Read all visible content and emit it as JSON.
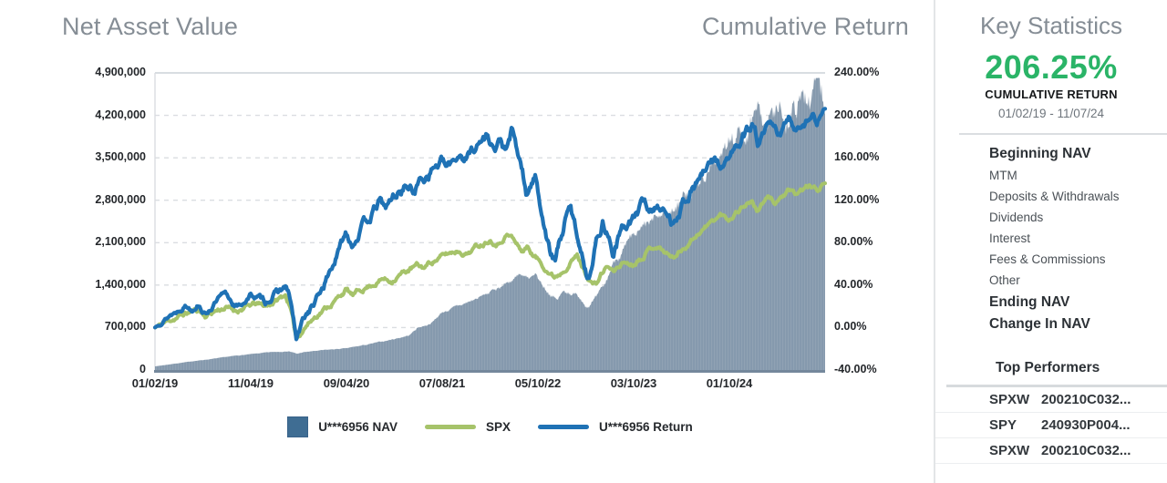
{
  "header": {
    "nav_title": "Net Asset Value",
    "return_title": "Cumulative Return"
  },
  "chart_data": {
    "type": "mixed-area-line",
    "grid": true,
    "legend_position": "bottom",
    "x_ticks": [
      "01/02/19",
      "11/04/19",
      "09/04/20",
      "07/08/21",
      "05/10/22",
      "03/10/23",
      "01/10/24"
    ],
    "x_end_date": "11/07/24",
    "left_axis": {
      "min": 0,
      "max": 4900000,
      "labels": [
        "4,900,000",
        "4,200,000",
        "3,500,000",
        "2,800,000",
        "2,100,000",
        "1,400,000",
        "700,000",
        "0"
      ]
    },
    "right_axis": {
      "min": -40,
      "max": 240,
      "labels": [
        "240.00%",
        "200.00%",
        "160.00%",
        "120.00%",
        "80.00%",
        "40.00%",
        "0.00%",
        "-40.00%"
      ]
    },
    "series": [
      {
        "name": "U***6956 NAV",
        "kind": "area",
        "axis": "left",
        "color": "#8599ad",
        "legend_swatch": "#3f6d93",
        "points": [
          [
            0.0,
            60000
          ],
          [
            0.02,
            90000
          ],
          [
            0.04,
            120000
          ],
          [
            0.06,
            150000
          ],
          [
            0.08,
            175000
          ],
          [
            0.1,
            205000
          ],
          [
            0.12,
            235000
          ],
          [
            0.143,
            260000
          ],
          [
            0.16,
            280000
          ],
          [
            0.18,
            300000
          ],
          [
            0.2,
            310000
          ],
          [
            0.207,
            285000
          ],
          [
            0.212,
            265000
          ],
          [
            0.22,
            290000
          ],
          [
            0.24,
            315000
          ],
          [
            0.26,
            335000
          ],
          [
            0.285,
            355000
          ],
          [
            0.3,
            385000
          ],
          [
            0.32,
            425000
          ],
          [
            0.34,
            470000
          ],
          [
            0.36,
            520000
          ],
          [
            0.38,
            575000
          ],
          [
            0.392,
            700000
          ],
          [
            0.405,
            740000
          ],
          [
            0.415,
            800000
          ],
          [
            0.428,
            950000
          ],
          [
            0.44,
            1000000
          ],
          [
            0.455,
            1060000
          ],
          [
            0.47,
            1130000
          ],
          [
            0.485,
            1200000
          ],
          [
            0.5,
            1280000
          ],
          [
            0.515,
            1380000
          ],
          [
            0.53,
            1470000
          ],
          [
            0.544,
            1550000
          ],
          [
            0.556,
            1470000
          ],
          [
            0.568,
            1580000
          ],
          [
            0.58,
            1380000
          ],
          [
            0.59,
            1250000
          ],
          [
            0.6,
            1150000
          ],
          [
            0.61,
            1300000
          ],
          [
            0.62,
            1280000
          ],
          [
            0.632,
            1220000
          ],
          [
            0.645,
            1060000
          ],
          [
            0.66,
            1200000
          ],
          [
            0.672,
            1400000
          ],
          [
            0.685,
            1800000
          ],
          [
            0.7,
            2000000
          ],
          [
            0.714,
            2150000
          ],
          [
            0.73,
            2330000
          ],
          [
            0.75,
            2500000
          ],
          [
            0.77,
            2600000
          ],
          [
            0.79,
            2900000
          ],
          [
            0.81,
            3100000
          ],
          [
            0.83,
            3320000
          ],
          [
            0.857,
            3700000
          ],
          [
            0.88,
            3920000
          ],
          [
            0.9,
            4120000
          ],
          [
            0.92,
            4260000
          ],
          [
            0.94,
            4120000
          ],
          [
            0.96,
            4380000
          ],
          [
            0.975,
            4560000
          ],
          [
            0.99,
            4660000
          ],
          [
            1.0,
            4460000
          ]
        ]
      },
      {
        "name": "SPX",
        "kind": "line",
        "axis": "right",
        "color": "#a6c36a",
        "legend_swatch": "#a6c36a",
        "points": [
          [
            0.0,
            0
          ],
          [
            0.015,
            5
          ],
          [
            0.03,
            9
          ],
          [
            0.045,
            13
          ],
          [
            0.055,
            15
          ],
          [
            0.065,
            17
          ],
          [
            0.075,
            11
          ],
          [
            0.09,
            16
          ],
          [
            0.105,
            19
          ],
          [
            0.12,
            16
          ],
          [
            0.135,
            19
          ],
          [
            0.15,
            22
          ],
          [
            0.165,
            20
          ],
          [
            0.18,
            25
          ],
          [
            0.195,
            31
          ],
          [
            0.202,
            18
          ],
          [
            0.207,
            2
          ],
          [
            0.211,
            -11
          ],
          [
            0.217,
            -5
          ],
          [
            0.225,
            2
          ],
          [
            0.235,
            8
          ],
          [
            0.245,
            14
          ],
          [
            0.258,
            20
          ],
          [
            0.27,
            26
          ],
          [
            0.285,
            36
          ],
          [
            0.295,
            30
          ],
          [
            0.305,
            34
          ],
          [
            0.315,
            38
          ],
          [
            0.328,
            42
          ],
          [
            0.34,
            46
          ],
          [
            0.352,
            44
          ],
          [
            0.365,
            50
          ],
          [
            0.378,
            54
          ],
          [
            0.39,
            58
          ],
          [
            0.4,
            56
          ],
          [
            0.412,
            62
          ],
          [
            0.428,
            67
          ],
          [
            0.44,
            70
          ],
          [
            0.452,
            73
          ],
          [
            0.465,
            70
          ],
          [
            0.478,
            76
          ],
          [
            0.49,
            80
          ],
          [
            0.5,
            84
          ],
          [
            0.512,
            80
          ],
          [
            0.524,
            88
          ],
          [
            0.532,
            86
          ],
          [
            0.54,
            78
          ],
          [
            0.548,
            72
          ],
          [
            0.556,
            76
          ],
          [
            0.565,
            68
          ],
          [
            0.575,
            62
          ],
          [
            0.585,
            55
          ],
          [
            0.595,
            48
          ],
          [
            0.605,
            52
          ],
          [
            0.613,
            58
          ],
          [
            0.622,
            64
          ],
          [
            0.63,
            68
          ],
          [
            0.64,
            54
          ],
          [
            0.65,
            44
          ],
          [
            0.658,
            40
          ],
          [
            0.666,
            50
          ],
          [
            0.675,
            58
          ],
          [
            0.684,
            52
          ],
          [
            0.692,
            58
          ],
          [
            0.7,
            62
          ],
          [
            0.712,
            60
          ],
          [
            0.724,
            66
          ],
          [
            0.736,
            74
          ],
          [
            0.748,
            78
          ],
          [
            0.76,
            72
          ],
          [
            0.772,
            66
          ],
          [
            0.784,
            72
          ],
          [
            0.796,
            80
          ],
          [
            0.808,
            88
          ],
          [
            0.82,
            94
          ],
          [
            0.832,
            100
          ],
          [
            0.844,
            106
          ],
          [
            0.856,
            102
          ],
          [
            0.868,
            110
          ],
          [
            0.88,
            116
          ],
          [
            0.89,
            120
          ],
          [
            0.898,
            110
          ],
          [
            0.906,
            116
          ],
          [
            0.916,
            122
          ],
          [
            0.926,
            118
          ],
          [
            0.936,
            124
          ],
          [
            0.946,
            128
          ],
          [
            0.956,
            124
          ],
          [
            0.966,
            130
          ],
          [
            0.976,
            133
          ],
          [
            0.988,
            130
          ],
          [
            1.0,
            136
          ]
        ]
      },
      {
        "name": "U***6956 Return",
        "kind": "line",
        "axis": "right",
        "color": "#1f72b5",
        "legend_swatch": "#1f72b5",
        "final_value_pct": 206.25,
        "points": [
          [
            0.0,
            0
          ],
          [
            0.01,
            6
          ],
          [
            0.022,
            12
          ],
          [
            0.034,
            16
          ],
          [
            0.045,
            22
          ],
          [
            0.055,
            18
          ],
          [
            0.065,
            24
          ],
          [
            0.075,
            13
          ],
          [
            0.085,
            20
          ],
          [
            0.095,
            27
          ],
          [
            0.105,
            30
          ],
          [
            0.115,
            24
          ],
          [
            0.125,
            19
          ],
          [
            0.135,
            26
          ],
          [
            0.145,
            31
          ],
          [
            0.155,
            27
          ],
          [
            0.165,
            24
          ],
          [
            0.175,
            30
          ],
          [
            0.185,
            34
          ],
          [
            0.195,
            38
          ],
          [
            0.202,
            25
          ],
          [
            0.207,
            5
          ],
          [
            0.211,
            -12
          ],
          [
            0.216,
            -4
          ],
          [
            0.222,
            8
          ],
          [
            0.23,
            16
          ],
          [
            0.24,
            24
          ],
          [
            0.252,
            40
          ],
          [
            0.262,
            55
          ],
          [
            0.272,
            68
          ],
          [
            0.285,
            90
          ],
          [
            0.295,
            80
          ],
          [
            0.305,
            92
          ],
          [
            0.315,
            100
          ],
          [
            0.325,
            108
          ],
          [
            0.335,
            118
          ],
          [
            0.345,
            112
          ],
          [
            0.355,
            122
          ],
          [
            0.365,
            128
          ],
          [
            0.375,
            135
          ],
          [
            0.385,
            128
          ],
          [
            0.395,
            138
          ],
          [
            0.405,
            145
          ],
          [
            0.415,
            152
          ],
          [
            0.428,
            156
          ],
          [
            0.436,
            148
          ],
          [
            0.445,
            158
          ],
          [
            0.455,
            165
          ],
          [
            0.465,
            160
          ],
          [
            0.475,
            170
          ],
          [
            0.485,
            175
          ],
          [
            0.497,
            182
          ],
          [
            0.508,
            168
          ],
          [
            0.516,
            176
          ],
          [
            0.524,
            164
          ],
          [
            0.532,
            184
          ],
          [
            0.54,
            165
          ],
          [
            0.548,
            148
          ],
          [
            0.554,
            120
          ],
          [
            0.56,
            135
          ],
          [
            0.568,
            142
          ],
          [
            0.576,
            115
          ],
          [
            0.583,
            92
          ],
          [
            0.59,
            70
          ],
          [
            0.597,
            62
          ],
          [
            0.604,
            80
          ],
          [
            0.612,
            100
          ],
          [
            0.62,
            112
          ],
          [
            0.628,
            92
          ],
          [
            0.636,
            75
          ],
          [
            0.644,
            50
          ],
          [
            0.652,
            62
          ],
          [
            0.66,
            85
          ],
          [
            0.668,
            100
          ],
          [
            0.676,
            90
          ],
          [
            0.684,
            70
          ],
          [
            0.692,
            85
          ],
          [
            0.7,
            95
          ],
          [
            0.71,
            100
          ],
          [
            0.72,
            108
          ],
          [
            0.73,
            118
          ],
          [
            0.74,
            110
          ],
          [
            0.75,
            118
          ],
          [
            0.76,
            108
          ],
          [
            0.77,
            99
          ],
          [
            0.78,
            110
          ],
          [
            0.79,
            121
          ],
          [
            0.8,
            130
          ],
          [
            0.812,
            140
          ],
          [
            0.824,
            148
          ],
          [
            0.836,
            157
          ],
          [
            0.848,
            150
          ],
          [
            0.86,
            163
          ],
          [
            0.872,
            172
          ],
          [
            0.884,
            182
          ],
          [
            0.893,
            190
          ],
          [
            0.9,
            172
          ],
          [
            0.908,
            180
          ],
          [
            0.918,
            188
          ],
          [
            0.928,
            181
          ],
          [
            0.938,
            189
          ],
          [
            0.948,
            194
          ],
          [
            0.958,
            187
          ],
          [
            0.968,
            196
          ],
          [
            0.978,
            201
          ],
          [
            0.988,
            196
          ],
          [
            1.0,
            206.25
          ]
        ]
      }
    ]
  },
  "key_statistics": {
    "title": "Key Statistics",
    "cumulative_return_value": "206.25%",
    "cumulative_return_label": "CUMULATIVE RETURN",
    "date_range": "01/02/19 - 11/07/24",
    "breakdown": [
      {
        "label": "Beginning NAV",
        "emphasized": true
      },
      {
        "label": "MTM",
        "emphasized": false
      },
      {
        "label": "Deposits & Withdrawals",
        "emphasized": false
      },
      {
        "label": "Dividends",
        "emphasized": false
      },
      {
        "label": "Interest",
        "emphasized": false
      },
      {
        "label": "Fees & Commissions",
        "emphasized": false
      },
      {
        "label": "Other",
        "emphasized": false
      },
      {
        "label": "Ending NAV",
        "emphasized": true
      },
      {
        "label": "Change In NAV",
        "emphasized": true
      }
    ],
    "top_performers": {
      "title": "Top Performers",
      "rows": [
        {
          "symbol": "SPXW",
          "contract": "200210C032..."
        },
        {
          "symbol": "SPY",
          "contract": "240930P004..."
        },
        {
          "symbol": "SPXW",
          "contract": "200210C032..."
        }
      ]
    }
  },
  "colors": {
    "accent_green": "#2ab467",
    "title_gray": "#858d95",
    "nav_area": "#8599ad",
    "spx_line": "#a6c36a",
    "return_line": "#1f72b5",
    "axis_line": "#74889c"
  }
}
